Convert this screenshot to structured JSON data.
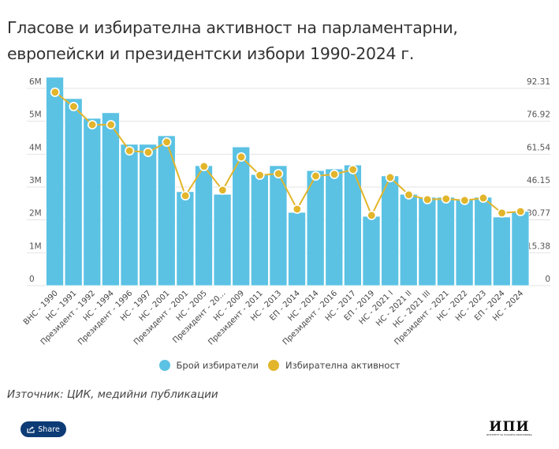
{
  "title": "Гласове и избирателна активност на парламентарни, европейски и президентски избори 1990-2024 г.",
  "chart_data": {
    "type": "bar+line",
    "title": "Гласове и избирателна активност на парламентарни, европейски и президентски избори 1990-2024 г.",
    "categories": [
      "ВНС - 1990",
      "НС - 1991",
      "Президент - 1992",
      "НС - 1994",
      "Президент - 1996",
      "НС - 1997",
      "НС - 2001",
      "Президент - 2001",
      "НС - 2005",
      "Президент - 20...",
      "НС - 2009",
      "Президент - 2011",
      "НС - 2013",
      "ЕП - 2014",
      "НС - 2014",
      "Президент - 2016",
      "НС - 2017",
      "ЕП - 2019",
      "НС - 2021 I",
      "НС - 2021 II",
      "НС - 2021 III",
      "Президент - 2021",
      "НС - 2022",
      "НС - 2023",
      "ЕП - 2024",
      "НС - 2024"
    ],
    "series": [
      {
        "name": "Брой избиратели",
        "type": "bar",
        "axis": "left",
        "color": "#5bc2e4",
        "values": [
          6340000,
          5690000,
          5090000,
          5260000,
          4300000,
          4300000,
          4560000,
          2860000,
          3650000,
          2780000,
          4220000,
          3380000,
          3650000,
          2230000,
          3500000,
          3550000,
          3670000,
          2110000,
          3340000,
          2780000,
          2690000,
          2690000,
          2640000,
          2690000,
          2090000,
          2260000
        ]
      },
      {
        "name": "Избирателна активност",
        "type": "line",
        "axis": "right",
        "color": "#e2b52b",
        "values": [
          90.5,
          83.8,
          75.3,
          75.3,
          63.1,
          62.4,
          67.2,
          42.1,
          55.8,
          44.7,
          60.2,
          51.7,
          52.4,
          35.8,
          51.3,
          52.1,
          54.3,
          32.9,
          50.6,
          42.5,
          40.3,
          40.6,
          39.9,
          41.0,
          34.0,
          34.7
        ]
      }
    ],
    "y_left": {
      "ticks": [
        "0",
        "1M",
        "2M",
        "3M",
        "4M",
        "5M",
        "6M"
      ],
      "range": [
        0,
        6000000
      ]
    },
    "y_right": {
      "ticks": [
        "0",
        "15.38",
        "30.77",
        "46.15",
        "61.54",
        "76.92",
        "92.31"
      ],
      "range": [
        0,
        92.31
      ]
    },
    "grid": true,
    "legend_position": "bottom-center"
  },
  "legend": [
    {
      "label": "Брой избиратели",
      "color": "#5bc2e4"
    },
    {
      "label": "Избирателна активност",
      "color": "#e2b52b"
    }
  ],
  "source": "Източник: ЦИК, медийни публикации",
  "share_button": {
    "label": "Share",
    "icon": "share-icon",
    "bg": "#0c3b75"
  },
  "logo": {
    "main": "ИПИ",
    "sub": "ИНСТИТУТ ЗА ПАЗАРНА ИКОНОМИКА"
  }
}
